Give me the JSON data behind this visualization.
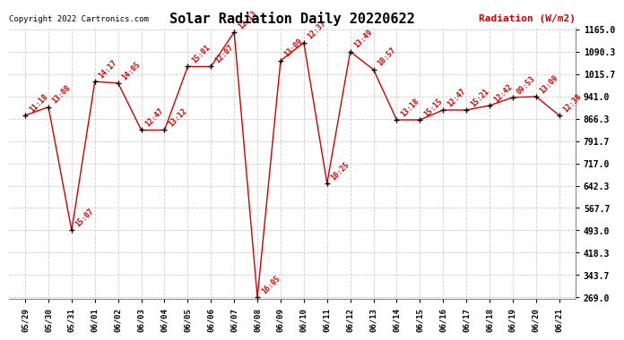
{
  "title": "Solar Radiation Daily 20220622",
  "ylabel": "Radiation (W/m2)",
  "copyright": "Copyright 2022 Cartronics.com",
  "background_color": "#ffffff",
  "grid_color": "#cccccc",
  "line_color": "#cc0000",
  "text_color_red": "#cc0000",
  "ylim": [
    269.0,
    1165.0
  ],
  "yticks": [
    269.0,
    343.7,
    418.3,
    493.0,
    567.7,
    642.3,
    717.0,
    791.7,
    866.3,
    941.0,
    1015.7,
    1090.3,
    1165.0
  ],
  "dates": [
    "05/29",
    "05/30",
    "05/31",
    "06/01",
    "06/02",
    "06/03",
    "06/04",
    "06/05",
    "06/06",
    "06/07",
    "06/08",
    "06/09",
    "06/10",
    "06/11",
    "06/12",
    "06/13",
    "06/14",
    "06/15",
    "06/16",
    "06/17",
    "06/18",
    "06/19",
    "06/20",
    "06/21"
  ],
  "data_points": [
    {
      "date": "05/29",
      "time": "11:18",
      "value": 877
    },
    {
      "date": "05/30",
      "time": "13:08",
      "value": 905
    },
    {
      "date": "05/31",
      "time": "15:07",
      "value": 493
    },
    {
      "date": "06/01",
      "time": "14:17",
      "value": 990
    },
    {
      "date": "06/02",
      "time": "14:05",
      "value": 985
    },
    {
      "date": "06/03",
      "time": "12:47",
      "value": 828
    },
    {
      "date": "06/04",
      "time": "13:12",
      "value": 828
    },
    {
      "date": "06/05",
      "time": "15:01",
      "value": 1040
    },
    {
      "date": "06/06",
      "time": "12:07",
      "value": 1040
    },
    {
      "date": "06/07",
      "time": "12:13",
      "value": 1155
    },
    {
      "date": "06/08",
      "time": "16:05",
      "value": 269
    },
    {
      "date": "06/09",
      "time": "13:09",
      "value": 1060
    },
    {
      "date": "06/10",
      "time": "12:37",
      "value": 1120
    },
    {
      "date": "06/11",
      "time": "10:25",
      "value": 650
    },
    {
      "date": "06/12",
      "time": "13:49",
      "value": 1090
    },
    {
      "date": "06/13",
      "time": "10:57",
      "value": 1030
    },
    {
      "date": "06/14",
      "time": "13:18",
      "value": 862
    },
    {
      "date": "06/15",
      "time": "15:15",
      "value": 862
    },
    {
      "date": "06/16",
      "time": "12:47",
      "value": 895
    },
    {
      "date": "06/17",
      "time": "15:21",
      "value": 895
    },
    {
      "date": "06/18",
      "time": "12:42",
      "value": 910
    },
    {
      "date": "06/19",
      "time": "09:53",
      "value": 937
    },
    {
      "date": "06/20",
      "time": "13:09",
      "value": 940
    },
    {
      "date": "06/21",
      "time": "12:38",
      "value": 877
    }
  ],
  "title_fontsize": 11,
  "tick_fontsize": 6.5,
  "ytick_fontsize": 7,
  "label_fontsize": 6,
  "copyright_fontsize": 6.5,
  "ylabel_fontsize": 8
}
